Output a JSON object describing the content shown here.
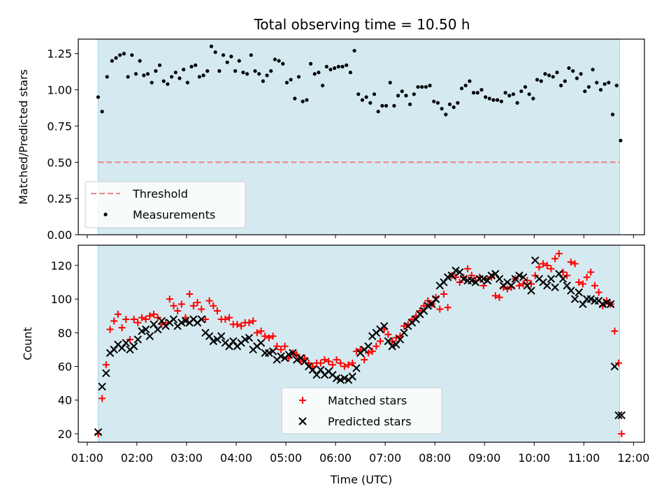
{
  "chart_data": [
    {
      "type": "scatter",
      "title": "Total observing time = 10.50 h",
      "xlabel": "",
      "ylabel": "Matched/Predicted stars",
      "ylim": [
        0,
        1.35
      ],
      "yticks": [
        "0.00",
        "0.25",
        "0.50",
        "0.75",
        "1.00",
        "1.25"
      ],
      "ytick_values": [
        0,
        0.25,
        0.5,
        0.75,
        1.0,
        1.25
      ],
      "observing_window_hours": [
        1.22,
        11.72
      ],
      "observing_window_color": "#d4eaf0",
      "threshold": 0.5,
      "threshold_color": "#f08080",
      "legend_position": "lower-left",
      "series": [
        {
          "name": "Measurements",
          "marker": "dot",
          "color": "#000000",
          "x": [
            1.22,
            1.3,
            1.4,
            1.5,
            1.58,
            1.66,
            1.74,
            1.82,
            1.9,
            1.98,
            2.06,
            2.14,
            2.22,
            2.3,
            2.38,
            2.46,
            2.54,
            2.62,
            2.7,
            2.78,
            2.86,
            2.94,
            3.02,
            3.1,
            3.18,
            3.26,
            3.34,
            3.42,
            3.5,
            3.58,
            3.66,
            3.74,
            3.82,
            3.9,
            3.98,
            4.06,
            4.14,
            4.22,
            4.3,
            4.38,
            4.46,
            4.54,
            4.62,
            4.7,
            4.78,
            4.86,
            4.94,
            5.02,
            5.1,
            5.18,
            5.26,
            5.34,
            5.42,
            5.5,
            5.58,
            5.66,
            5.74,
            5.82,
            5.9,
            5.98,
            6.06,
            6.14,
            6.22,
            6.3,
            6.38,
            6.46,
            6.54,
            6.62,
            6.7,
            6.78,
            6.86,
            6.94,
            7.02,
            7.1,
            7.18,
            7.26,
            7.34,
            7.42,
            7.5,
            7.58,
            7.66,
            7.74,
            7.82,
            7.9,
            7.98,
            8.06,
            8.14,
            8.22,
            8.3,
            8.38,
            8.46,
            8.54,
            8.62,
            8.7,
            8.78,
            8.86,
            8.94,
            9.02,
            9.1,
            9.18,
            9.26,
            9.34,
            9.42,
            9.5,
            9.58,
            9.66,
            9.74,
            9.82,
            9.9,
            9.98,
            10.06,
            10.14,
            10.22,
            10.3,
            10.38,
            10.46,
            10.54,
            10.62,
            10.7,
            10.78,
            10.86,
            10.94,
            11.02,
            11.1,
            11.18,
            11.26,
            11.34,
            11.42,
            11.5,
            11.58,
            11.66,
            11.74
          ],
          "y": [
            0.95,
            0.85,
            1.09,
            1.2,
            1.22,
            1.24,
            1.25,
            1.09,
            1.24,
            1.11,
            1.2,
            1.1,
            1.11,
            1.05,
            1.13,
            1.17,
            1.06,
            1.04,
            1.09,
            1.12,
            1.08,
            1.14,
            1.05,
            1.16,
            1.17,
            1.09,
            1.1,
            1.13,
            1.3,
            1.26,
            1.13,
            1.24,
            1.19,
            1.23,
            1.13,
            1.2,
            1.12,
            1.11,
            1.24,
            1.13,
            1.11,
            1.06,
            1.1,
            1.13,
            1.21,
            1.2,
            1.18,
            1.05,
            1.07,
            0.94,
            1.09,
            0.92,
            0.93,
            1.18,
            1.11,
            1.12,
            1.03,
            1.16,
            1.14,
            1.15,
            1.16,
            1.16,
            1.17,
            1.12,
            1.27,
            0.97,
            0.93,
            0.95,
            0.91,
            0.97,
            0.85,
            0.89,
            0.89,
            1.05,
            0.89,
            0.96,
            0.99,
            0.96,
            0.9,
            0.97,
            1.02,
            1.02,
            1.02,
            1.03,
            0.92,
            0.91,
            0.87,
            0.83,
            0.9,
            0.88,
            0.91,
            1.01,
            1.03,
            1.06,
            0.98,
            0.98,
            1.0,
            0.95,
            0.94,
            0.93,
            0.93,
            0.92,
            0.98,
            0.96,
            0.97,
            0.91,
            0.99,
            1.02,
            0.97,
            0.94,
            1.07,
            1.06,
            1.11,
            1.1,
            1.09,
            1.12,
            1.03,
            1.06,
            1.15,
            1.13,
            1.08,
            1.11,
            0.99,
            1.02,
            1.14,
            1.05,
            1.0,
            1.04,
            1.05,
            0.83,
            1.03,
            0.65
          ]
        }
      ],
      "threshold_series_name": "Threshold"
    },
    {
      "type": "scatter",
      "title": "",
      "xlabel": "Time (UTC)",
      "ylabel": "Count",
      "ylim": [
        15,
        132
      ],
      "yticks": [
        "20",
        "40",
        "60",
        "80",
        "100",
        "120"
      ],
      "ytick_values": [
        20,
        40,
        60,
        80,
        100,
        120
      ],
      "xlim_hours": [
        0.82,
        12.22
      ],
      "xticks": [
        "01:00",
        "02:00",
        "03:00",
        "04:00",
        "05:00",
        "06:00",
        "07:00",
        "08:00",
        "09:00",
        "10:00",
        "11:00",
        "12:00"
      ],
      "xtick_values": [
        1,
        2,
        3,
        4,
        5,
        6,
        7,
        8,
        9,
        10,
        11,
        12
      ],
      "legend_position": "lower-center",
      "series": [
        {
          "name": "Matched stars",
          "marker": "plus",
          "color": "#ff0000",
          "x": [
            1.22,
            1.3,
            1.38,
            1.46,
            1.54,
            1.62,
            1.7,
            1.78,
            1.86,
            1.94,
            2.02,
            2.1,
            2.18,
            2.26,
            2.34,
            2.42,
            2.5,
            2.58,
            2.66,
            2.74,
            2.82,
            2.9,
            2.98,
            3.06,
            3.14,
            3.22,
            3.3,
            3.38,
            3.46,
            3.54,
            3.62,
            3.7,
            3.78,
            3.86,
            3.94,
            4.02,
            4.1,
            4.18,
            4.26,
            4.34,
            4.42,
            4.5,
            4.58,
            4.66,
            4.74,
            4.82,
            4.9,
            4.98,
            5.06,
            5.14,
            5.22,
            5.3,
            5.38,
            5.46,
            5.54,
            5.62,
            5.7,
            5.78,
            5.86,
            5.94,
            6.02,
            6.1,
            6.18,
            6.26,
            6.34,
            6.42,
            6.5,
            6.58,
            6.66,
            6.74,
            6.82,
            6.9,
            6.98,
            7.06,
            7.14,
            7.22,
            7.3,
            7.38,
            7.46,
            7.54,
            7.62,
            7.7,
            7.78,
            7.86,
            7.94,
            8.02,
            8.1,
            8.18,
            8.26,
            8.34,
            8.42,
            8.5,
            8.58,
            8.66,
            8.74,
            8.82,
            8.9,
            8.98,
            9.06,
            9.14,
            9.22,
            9.3,
            9.38,
            9.46,
            9.54,
            9.62,
            9.7,
            9.78,
            9.86,
            9.94,
            10.02,
            10.1,
            10.18,
            10.26,
            10.34,
            10.42,
            10.5,
            10.58,
            10.66,
            10.74,
            10.82,
            10.9,
            10.98,
            11.06,
            11.14,
            11.22,
            11.3,
            11.38,
            11.46,
            11.54,
            11.62,
            11.7,
            11.76
          ],
          "y": [
            20,
            41,
            61,
            82,
            87,
            91,
            83,
            88,
            76,
            88,
            86,
            89,
            88,
            90,
            91,
            89,
            85,
            86,
            100,
            96,
            93,
            97,
            89,
            103,
            96,
            98,
            94,
            88,
            99,
            96,
            93,
            88,
            88,
            89,
            85,
            85,
            84,
            86,
            86,
            87,
            80,
            81,
            78,
            77,
            78,
            72,
            70,
            72,
            65,
            68,
            67,
            63,
            65,
            62,
            60,
            62,
            62,
            64,
            63,
            61,
            64,
            62,
            60,
            61,
            62,
            69,
            70,
            64,
            68,
            69,
            72,
            75,
            82,
            79,
            75,
            77,
            78,
            84,
            85,
            88,
            90,
            93,
            96,
            99,
            97,
            101,
            94,
            103,
            95,
            114,
            113,
            110,
            113,
            118,
            114,
            111,
            113,
            108,
            112,
            113,
            102,
            101,
            107,
            106,
            107,
            112,
            108,
            109,
            111,
            109,
            114,
            119,
            121,
            120,
            118,
            124,
            127,
            116,
            114,
            122,
            121,
            110,
            109,
            113,
            116,
            108,
            104,
            96,
            99,
            97,
            81,
            62,
            20
          ]
        },
        {
          "name": "Predicted stars",
          "marker": "x",
          "color": "#000000",
          "x": [
            1.22,
            1.3,
            1.38,
            1.46,
            1.54,
            1.62,
            1.7,
            1.78,
            1.86,
            1.94,
            2.02,
            2.1,
            2.18,
            2.26,
            2.34,
            2.42,
            2.5,
            2.58,
            2.66,
            2.74,
            2.82,
            2.9,
            2.98,
            3.06,
            3.14,
            3.22,
            3.3,
            3.38,
            3.46,
            3.54,
            3.62,
            3.7,
            3.78,
            3.86,
            3.94,
            4.02,
            4.1,
            4.18,
            4.26,
            4.34,
            4.42,
            4.5,
            4.58,
            4.66,
            4.74,
            4.82,
            4.9,
            4.98,
            5.06,
            5.14,
            5.22,
            5.3,
            5.38,
            5.46,
            5.54,
            5.62,
            5.7,
            5.78,
            5.86,
            5.94,
            6.02,
            6.1,
            6.18,
            6.26,
            6.34,
            6.42,
            6.5,
            6.58,
            6.66,
            6.74,
            6.82,
            6.9,
            6.98,
            7.06,
            7.14,
            7.22,
            7.3,
            7.38,
            7.46,
            7.54,
            7.62,
            7.7,
            7.78,
            7.86,
            7.94,
            8.02,
            8.1,
            8.18,
            8.26,
            8.34,
            8.42,
            8.5,
            8.58,
            8.66,
            8.74,
            8.82,
            8.9,
            8.98,
            9.06,
            9.14,
            9.22,
            9.3,
            9.38,
            9.46,
            9.54,
            9.62,
            9.7,
            9.78,
            9.86,
            9.94,
            10.02,
            10.1,
            10.18,
            10.26,
            10.34,
            10.42,
            10.5,
            10.58,
            10.66,
            10.74,
            10.82,
            10.9,
            10.98,
            11.06,
            11.14,
            11.22,
            11.3,
            11.38,
            11.46,
            11.54,
            11.62,
            11.7,
            11.76
          ],
          "y": [
            21,
            48,
            56,
            68,
            70,
            73,
            71,
            74,
            70,
            72,
            76,
            81,
            82,
            78,
            85,
            82,
            87,
            84,
            86,
            88,
            84,
            86,
            87,
            86,
            88,
            86,
            88,
            80,
            78,
            75,
            76,
            78,
            74,
            72,
            75,
            72,
            74,
            76,
            77,
            70,
            72,
            74,
            68,
            68,
            69,
            64,
            66,
            65,
            67,
            68,
            64,
            65,
            63,
            60,
            58,
            55,
            58,
            55,
            57,
            55,
            53,
            52,
            53,
            52,
            54,
            59,
            68,
            70,
            72,
            78,
            80,
            82,
            84,
            75,
            72,
            73,
            76,
            80,
            84,
            86,
            88,
            91,
            93,
            96,
            97,
            100,
            108,
            110,
            113,
            114,
            117,
            116,
            112,
            111,
            111,
            110,
            112,
            112,
            111,
            114,
            115,
            112,
            108,
            110,
            108,
            112,
            114,
            113,
            108,
            105,
            123,
            112,
            110,
            108,
            112,
            107,
            115,
            112,
            108,
            105,
            100,
            104,
            97,
            100,
            100,
            99,
            99,
            97,
            98,
            97,
            60,
            31,
            31
          ]
        }
      ]
    }
  ]
}
